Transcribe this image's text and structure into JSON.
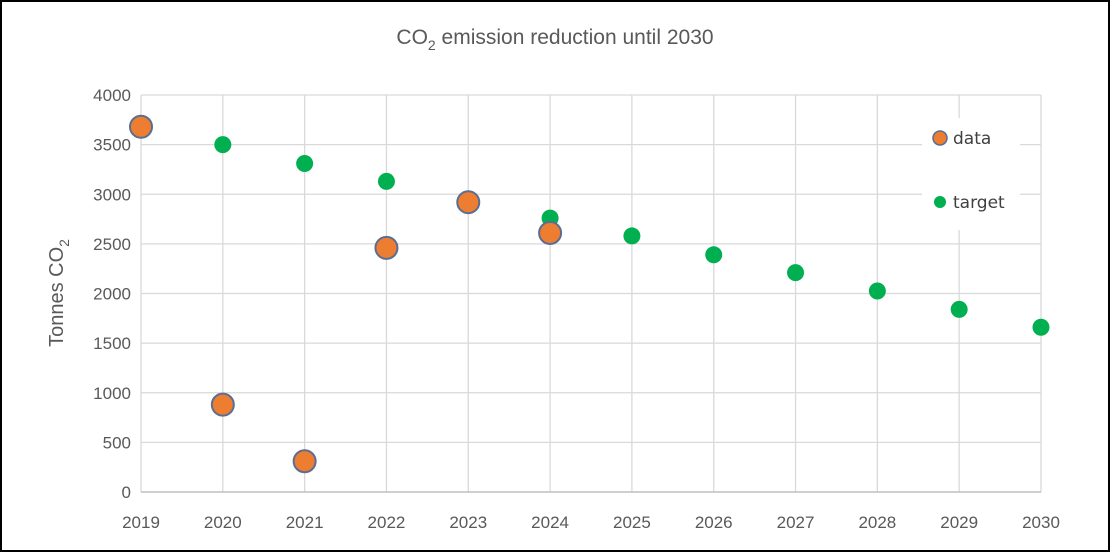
{
  "chart_data": {
    "type": "scatter",
    "title": {
      "prefix": "CO",
      "subscript": "2",
      "suffix": " emission reduction until 2030"
    },
    "ylabel": {
      "prefix": "Tonnes CO",
      "subscript": "2"
    },
    "xlabel": "",
    "xlim": [
      2019,
      2030
    ],
    "ylim": [
      0,
      4000
    ],
    "x_ticks": [
      2019,
      2020,
      2021,
      2022,
      2023,
      2024,
      2025,
      2026,
      2027,
      2028,
      2029,
      2030
    ],
    "y_ticks": [
      0,
      500,
      1000,
      1500,
      2000,
      2500,
      3000,
      3500,
      4000
    ],
    "grid": true,
    "legend_position": "top-right",
    "series": [
      {
        "name": "target",
        "color": "#00b050",
        "x": [
          2019,
          2020,
          2021,
          2022,
          2023,
          2024,
          2025,
          2026,
          2027,
          2028,
          2029,
          2030
        ],
        "y": [
          3680,
          3500,
          3310,
          3130,
          2950,
          2760,
          2580,
          2390,
          2210,
          2025,
          1840,
          1660
        ]
      },
      {
        "name": "data",
        "color": "#ed7d31",
        "edge_color": "#5b6d92",
        "x": [
          2019,
          2020,
          2021,
          2022,
          2023,
          2024
        ],
        "y": [
          3680,
          880,
          310,
          2460,
          2920,
          2610
        ]
      }
    ]
  }
}
